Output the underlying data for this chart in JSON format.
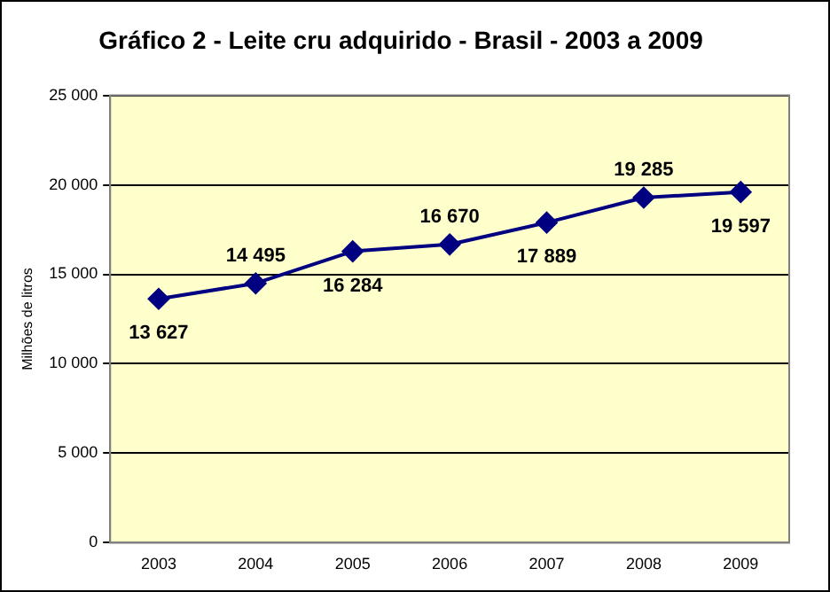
{
  "chart_data": {
    "type": "line",
    "title": "Gráfico 2 - Leite cru adquirido - Brasil - 2003 a 2009",
    "ylabel": "Milhões de litros",
    "categories": [
      "2003",
      "2004",
      "2005",
      "2006",
      "2007",
      "2008",
      "2009"
    ],
    "series": [
      {
        "color": "#000080",
        "values": [
          13627,
          14495,
          16284,
          16670,
          17889,
          19285,
          19597
        ],
        "value_labels": [
          "13 627",
          "14 495",
          "16 284",
          "16 670",
          "17 889",
          "19 285",
          "19 597"
        ]
      }
    ],
    "ylim": [
      0,
      25000
    ],
    "yticks": [
      {
        "value": 0,
        "label": "0"
      },
      {
        "value": 5000,
        "label": "5 000"
      },
      {
        "value": 10000,
        "label": "10 000"
      },
      {
        "value": 15000,
        "label": "15 000"
      },
      {
        "value": 20000,
        "label": "20 000"
      },
      {
        "value": 25000,
        "label": "25 000"
      }
    ],
    "grid": "y",
    "legend": false,
    "marker": "diamond",
    "line_style": "solid"
  }
}
